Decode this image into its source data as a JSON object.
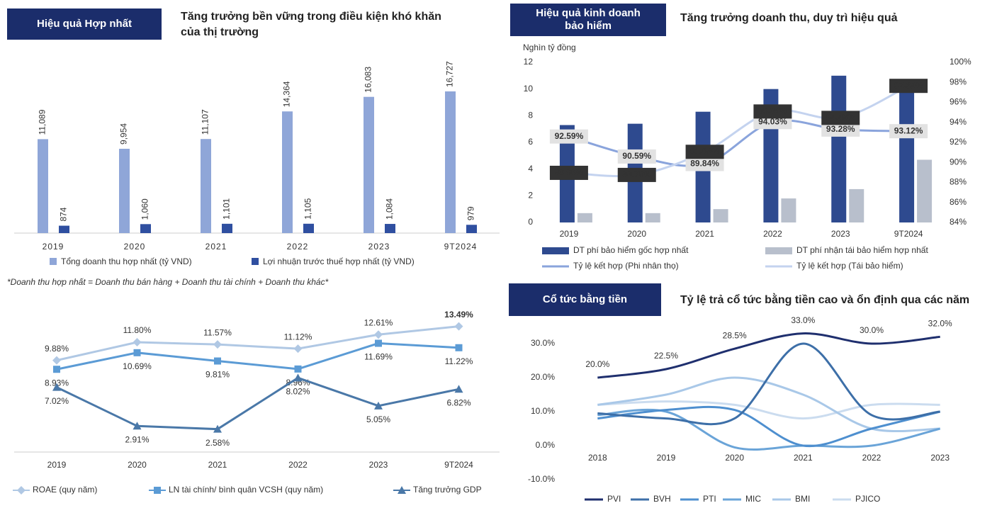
{
  "chart_data": [
    {
      "type": "bar",
      "badge": "Hiệu quả Hợp nhất",
      "title": [
        "Tăng trưởng bền vững trong điều kiện khó khăn",
        "của thị trường"
      ],
      "categories": [
        "2019",
        "2020",
        "2021",
        "2022",
        "2023",
        "9T2024"
      ],
      "series": [
        {
          "name": "Tổng doanh thu hợp nhất (tỷ VND)",
          "color": "#8fa6d8",
          "values": [
            11089,
            9954,
            11107,
            14364,
            16083,
            16727
          ],
          "value_labels": [
            "11,089",
            "9,954",
            "11,107",
            "14,364",
            "16,083",
            "16,727"
          ]
        },
        {
          "name": "Lợi nhuận trước thuế hợp nhất (tỷ VND)",
          "color": "#2f4fa0",
          "values": [
            874,
            1060,
            1101,
            1105,
            1084,
            979
          ],
          "value_labels": [
            "874",
            "1,060",
            "1,101",
            "1,105",
            "1,084",
            "979"
          ]
        }
      ],
      "note": "*Doanh thu hợp nhất = Doanh thu bán hàng + Doanh thu tài chính + Doanh thu khác*"
    },
    {
      "type": "combo",
      "badge": [
        "Hiệu quả kinh doanh",
        "bảo hiểm"
      ],
      "title": "Tăng trưởng doanh thu, duy trì hiệu quả",
      "y_label": "Nghìn tỷ đồng",
      "categories": [
        "2019",
        "2020",
        "2021",
        "2022",
        "2023",
        "9T2024"
      ],
      "ylim": [
        0,
        12
      ],
      "yticks": [
        0,
        2,
        4,
        6,
        8,
        10,
        12
      ],
      "y2lim": [
        84,
        100
      ],
      "y2ticks": [
        {
          "value": 84,
          "label": "84%"
        },
        {
          "value": 86,
          "label": "86%"
        },
        {
          "value": 88,
          "label": "88%"
        },
        {
          "value": 90,
          "label": "90%"
        },
        {
          "value": 92,
          "label": "92%"
        },
        {
          "value": 94,
          "label": "94%"
        },
        {
          "value": 96,
          "label": "96%"
        },
        {
          "value": 98,
          "label": "98%"
        },
        {
          "value": 100,
          "label": "100%"
        }
      ],
      "series": [
        {
          "name": "DT phí bảo hiểm gốc hợp nhất",
          "color": "#2e4a8f",
          "type": "bar",
          "values": [
            7.3,
            7.4,
            8.3,
            10.0,
            11.0,
            10.2
          ]
        },
        {
          "name": "DT phí nhận tái bảo hiểm hợp nhất",
          "color": "#b8bfcc",
          "type": "bar",
          "values": [
            0.7,
            0.7,
            1.0,
            1.8,
            2.5,
            4.7
          ]
        },
        {
          "name": "Tỷ lệ kết hợp (Phi nhân thọ)",
          "color": "#8aa4dc",
          "type": "line",
          "axis": "y2",
          "values": [
            92.59,
            90.59,
            89.84,
            94.03,
            93.28,
            93.12
          ],
          "value_labels": [
            "92.59%",
            "90.59%",
            "89.84%",
            "94.03%",
            "93.28%",
            "93.12%"
          ]
        },
        {
          "name": "Tỷ lệ kết hợp (Tái bảo hiểm)",
          "color": "#c4d3ef",
          "type": "line",
          "axis": "y2",
          "values": [
            88.96,
            88.75,
            91.06,
            95.09,
            94.45,
            97.65
          ],
          "value_labels": [
            "88.96%",
            "88.75%",
            "91.06%",
            "95.09%",
            "94.45%",
            "97.65%"
          ]
        }
      ]
    },
    {
      "type": "line",
      "categories": [
        "2019",
        "2020",
        "2021",
        "2022",
        "2023",
        "9T2024"
      ],
      "series": [
        {
          "name": "ROAE (quy năm)",
          "color": "#b0c8e4",
          "marker": "diamond",
          "values": [
            9.88,
            11.8,
            11.57,
            11.12,
            12.61,
            13.49
          ],
          "value_labels": [
            "9.88%",
            "11.80%",
            "11.57%",
            "11.12%",
            "12.61%",
            "13.49%"
          ]
        },
        {
          "name": "LN tài chính/ bình quân VCSH (quy năm)",
          "color": "#5b9bd5",
          "marker": "square",
          "values": [
            8.93,
            10.69,
            9.81,
            8.96,
            11.69,
            11.22
          ],
          "value_labels": [
            "8.93%",
            "10.69%",
            "9.81%",
            "8.96%",
            "11.69%",
            "11.22%"
          ]
        },
        {
          "name": "Tăng trưởng GDP",
          "color": "#4a78a8",
          "marker": "triangle",
          "values": [
            7.02,
            2.91,
            2.58,
            8.02,
            5.05,
            6.82
          ],
          "value_labels": [
            "7.02%",
            "2.91%",
            "2.58%",
            "8.02%",
            "5.05%",
            "6.82%"
          ]
        }
      ]
    },
    {
      "type": "line",
      "smooth": true,
      "badge": "Cổ tức bằng tiền",
      "title": "Tỷ lệ trả cổ tức bằng tiền cao và ổn định qua các năm",
      "categories": [
        "2018",
        "2019",
        "2020",
        "2021",
        "2022",
        "2023"
      ],
      "ylim": [
        -10,
        35
      ],
      "yticks": [
        {
          "value": -10,
          "label": "-10.0%"
        },
        {
          "value": 0,
          "label": "0.0%"
        },
        {
          "value": 10,
          "label": "10.0%"
        },
        {
          "value": 20,
          "label": "20.0%"
        },
        {
          "value": 30,
          "label": "30.0%"
        }
      ],
      "series": [
        {
          "name": "PVI",
          "color": "#1f2f6e",
          "values": [
            20.0,
            22.5,
            28.5,
            33.0,
            30.0,
            32.0
          ],
          "value_labels": [
            "20.0%",
            "22.5%",
            "28.5%",
            "33.0%",
            "30.0%",
            "32.0%"
          ]
        },
        {
          "name": "BVH",
          "color": "#3d6fa8",
          "values": [
            9.5,
            8,
            8,
            30,
            9,
            10
          ]
        },
        {
          "name": "PTI",
          "color": "#4e8fcf",
          "values": [
            8,
            10.5,
            10.5,
            0,
            5,
            10
          ]
        },
        {
          "name": "MIC",
          "color": "#6aa4d8",
          "values": [
            9,
            10,
            -0.5,
            0,
            0,
            5
          ]
        },
        {
          "name": "BMI",
          "color": "#a9c8e8",
          "values": [
            12,
            15,
            20,
            15,
            5,
            5
          ]
        },
        {
          "name": "PJICO",
          "color": "#cbdcef",
          "values": [
            12,
            13,
            12,
            8,
            12,
            12
          ]
        }
      ]
    }
  ]
}
